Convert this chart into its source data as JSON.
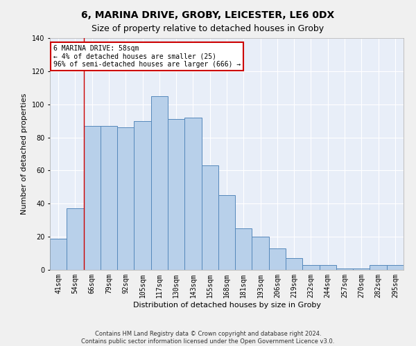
{
  "title": "6, MARINA DRIVE, GROBY, LEICESTER, LE6 0DX",
  "subtitle": "Size of property relative to detached houses in Groby",
  "xlabel": "Distribution of detached houses by size in Groby",
  "ylabel": "Number of detached properties",
  "categories": [
    "41sqm",
    "54sqm",
    "66sqm",
    "79sqm",
    "92sqm",
    "105sqm",
    "117sqm",
    "130sqm",
    "143sqm",
    "155sqm",
    "168sqm",
    "181sqm",
    "193sqm",
    "206sqm",
    "219sqm",
    "232sqm",
    "244sqm",
    "257sqm",
    "270sqm",
    "282sqm",
    "295sqm"
  ],
  "values": [
    19,
    37,
    87,
    87,
    86,
    90,
    105,
    91,
    92,
    63,
    45,
    25,
    20,
    13,
    7,
    3,
    3,
    1,
    1,
    3,
    3
  ],
  "bar_color": "#b8d0ea",
  "bar_edge_color": "#5588bb",
  "background_color": "#e8eef8",
  "grid_color": "#ffffff",
  "annotation_text": "6 MARINA DRIVE: 58sqm\n← 4% of detached houses are smaller (25)\n96% of semi-detached houses are larger (666) →",
  "annotation_box_color": "#ffffff",
  "annotation_box_edge_color": "#cc0000",
  "redline_x": 1.5,
  "ylim": [
    0,
    140
  ],
  "yticks": [
    0,
    20,
    40,
    60,
    80,
    100,
    120,
    140
  ],
  "footer": "Contains HM Land Registry data © Crown copyright and database right 2024.\nContains public sector information licensed under the Open Government Licence v3.0.",
  "title_fontsize": 10,
  "subtitle_fontsize": 9,
  "xlabel_fontsize": 8,
  "ylabel_fontsize": 8,
  "tick_fontsize": 7,
  "annotation_fontsize": 7,
  "footer_fontsize": 6
}
